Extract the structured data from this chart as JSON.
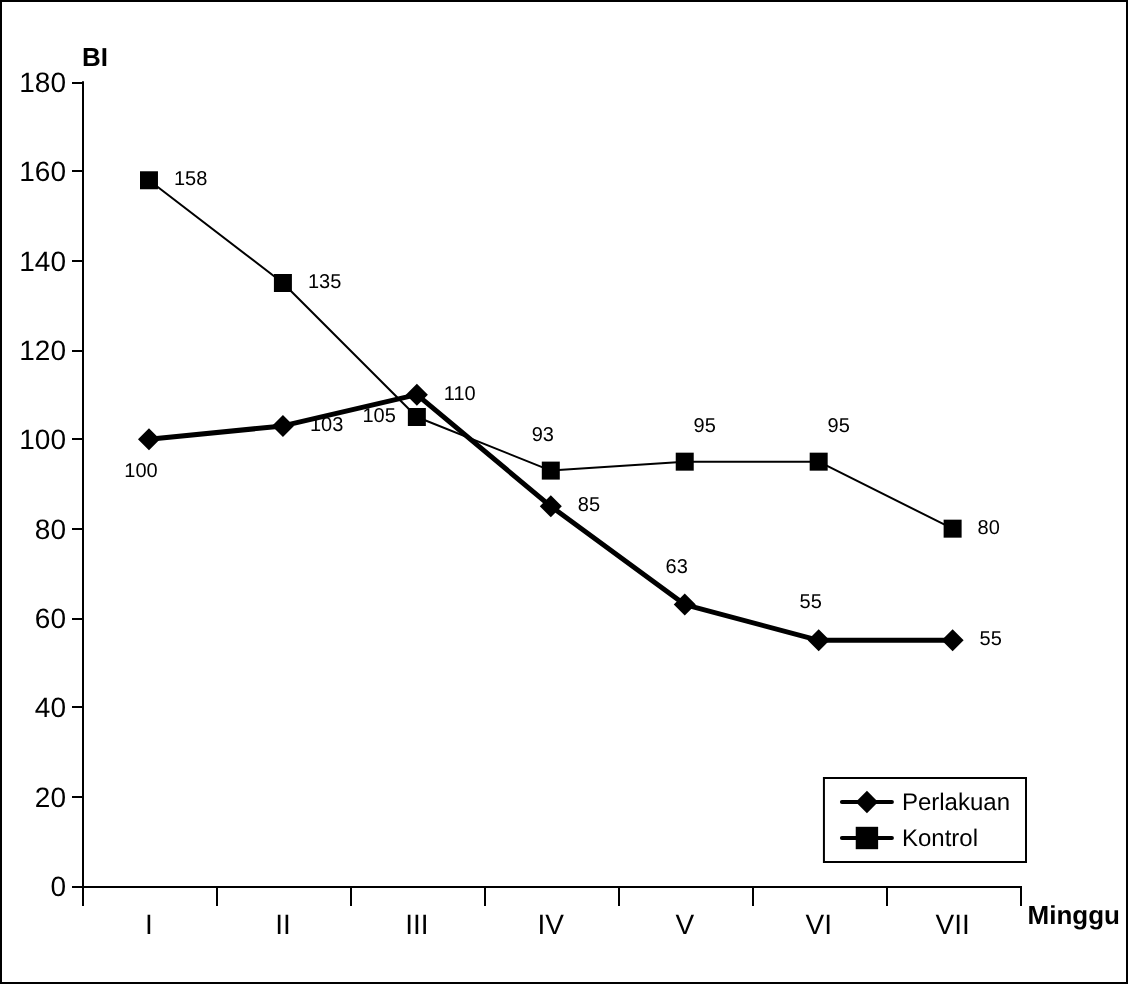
{
  "chart_data": {
    "type": "line",
    "xlabel": "Minggu",
    "ylabel": "BI",
    "categories": [
      "I",
      "II",
      "III",
      "IV",
      "V",
      "VI",
      "VII"
    ],
    "series": [
      {
        "name": "Perlakuan",
        "color": "#000000",
        "marker": "diamond",
        "values": [
          100,
          103,
          110,
          85,
          63,
          55,
          55
        ]
      },
      {
        "name": "Kontrol",
        "color": "#000000",
        "marker": "square",
        "values": [
          158,
          135,
          105,
          93,
          95,
          95,
          80
        ]
      }
    ],
    "ylim": [
      0,
      180
    ],
    "yticks": [
      0,
      20,
      40,
      60,
      80,
      100,
      120,
      140,
      160,
      180
    ],
    "data_labels": true,
    "grid": false,
    "legend": "bottom right",
    "line_style": "solid"
  }
}
